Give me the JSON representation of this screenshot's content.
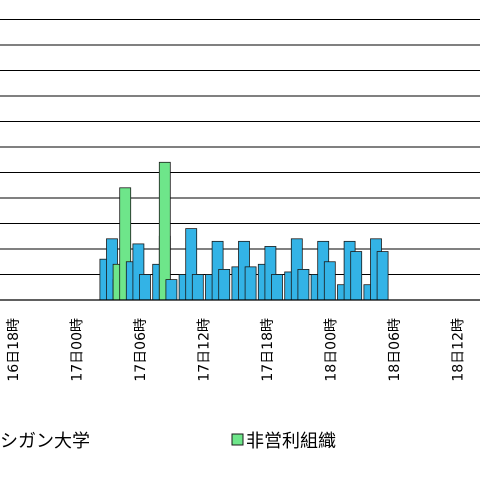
{
  "chart_data": {
    "type": "bar",
    "grid": true,
    "ylim": [
      0,
      12
    ],
    "x_tick_labels": [
      "16日18時",
      "17日00時",
      "17日06時",
      "17日12時",
      "17日18時",
      "18日00時",
      "18日06時",
      "18日12時"
    ],
    "series": [
      {
        "name": "シガン大学",
        "color": "#33b3e6",
        "values": [
          0,
          0,
          0,
          0,
          0,
          0,
          0,
          0,
          0,
          0,
          0,
          0,
          0,
          0,
          1.6,
          2.4,
          0.8,
          0,
          1.5,
          2.2,
          1.0,
          0,
          1.4,
          2.5,
          0.8,
          0,
          1.0,
          2.8,
          1.0,
          0,
          1.0,
          2.3,
          1.2,
          0,
          1.3,
          2.3,
          1.3,
          0,
          1.4,
          2.1,
          1.0,
          0,
          1.1,
          2.4,
          1.2,
          0,
          1.0,
          2.3,
          1.5,
          0,
          0.6,
          2.3,
          1.9,
          0,
          0.6,
          2.4,
          1.9
        ]
      },
      {
        "name": "非営利組織",
        "color": "#6ee68a",
        "values": [
          0,
          0,
          0,
          0,
          0,
          0,
          0,
          0,
          0,
          0,
          0,
          0,
          0,
          0,
          0,
          0,
          1.4,
          4.4,
          0,
          0,
          0,
          0,
          0,
          5.4,
          0,
          0,
          0,
          0,
          0,
          0,
          0,
          0,
          0,
          0,
          0,
          0,
          0,
          0,
          0,
          0,
          0,
          0,
          0,
          0,
          0,
          0,
          0,
          0,
          0,
          0,
          0,
          0,
          0,
          0,
          0,
          0,
          0
        ]
      }
    ],
    "legend": {
      "placement": "bottom",
      "entries": [
        {
          "label": "シガン大学",
          "color": "#33b3e6"
        },
        {
          "label": "非営利組織",
          "color": "#6ee68a"
        }
      ]
    }
  }
}
